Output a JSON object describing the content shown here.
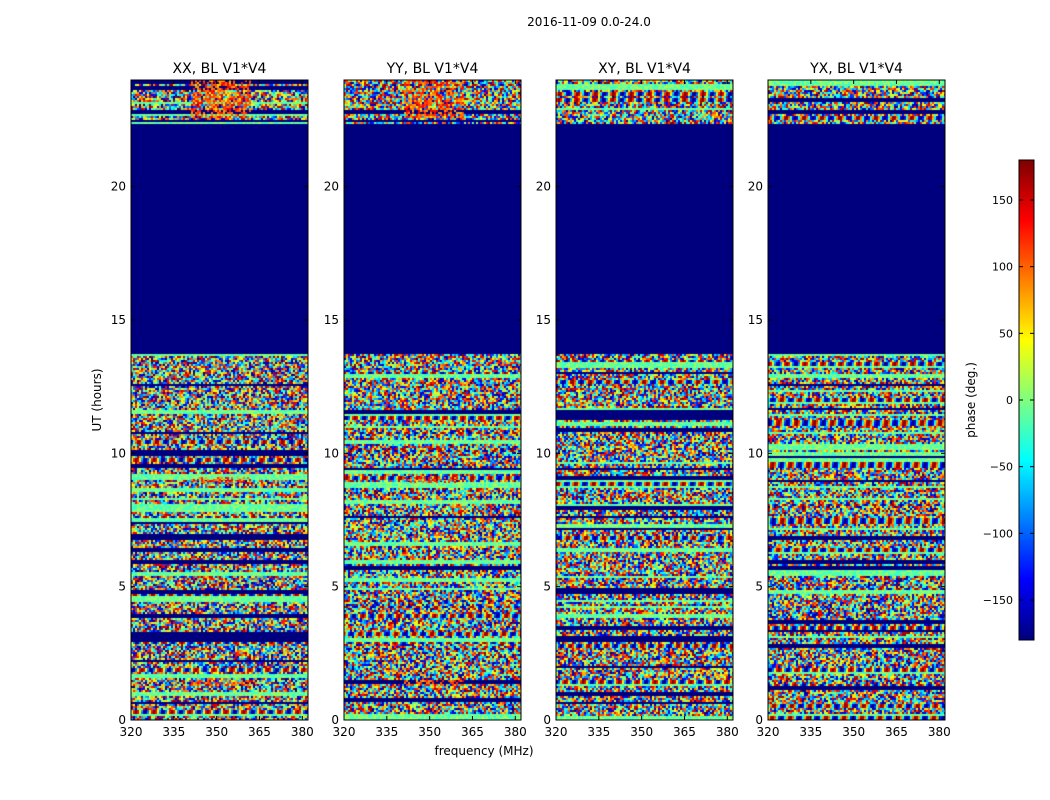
{
  "suptitle": "2016-11-09 0.0-24.0",
  "chart_data": {
    "type": "heatmap",
    "title": "2016-11-09 0.0-24.0",
    "xlabel": "frequency (MHz)",
    "ylabel": "UT (hours)",
    "xlim": [
      320,
      382
    ],
    "ylim": [
      0,
      24
    ],
    "xticks": [
      320,
      335,
      350,
      365,
      380
    ],
    "yticks": [
      0,
      5,
      10,
      15,
      20
    ],
    "panels": [
      {
        "title": "XX, BL V1*V4",
        "polarization": "XX",
        "baseline": "V1*V4"
      },
      {
        "title": "YY, BL V1*V4",
        "polarization": "YY",
        "baseline": "V1*V4"
      },
      {
        "title": "XY, BL V1*V4",
        "polarization": "XY",
        "baseline": "V1*V4"
      },
      {
        "title": "YX, BL V1*V4",
        "polarization": "YX",
        "baseline": "V1*V4"
      }
    ],
    "flagged_time_ranges_hours": [
      [
        20.45,
        20.7
      ],
      [
        13.75,
        20.45
      ],
      [
        20.7,
        22.35
      ]
    ],
    "colorbar": {
      "label": "phase (deg.)",
      "range": [
        -180,
        180
      ],
      "ticks": [
        -150,
        -100,
        -50,
        0,
        50,
        100,
        150
      ],
      "tick_labels": [
        "−150",
        "−100",
        "−50",
        "0",
        "50",
        "100",
        "150"
      ],
      "colormap": "jet"
    }
  },
  "colors": {
    "flagged": "#00007f",
    "frame": "#000000"
  }
}
